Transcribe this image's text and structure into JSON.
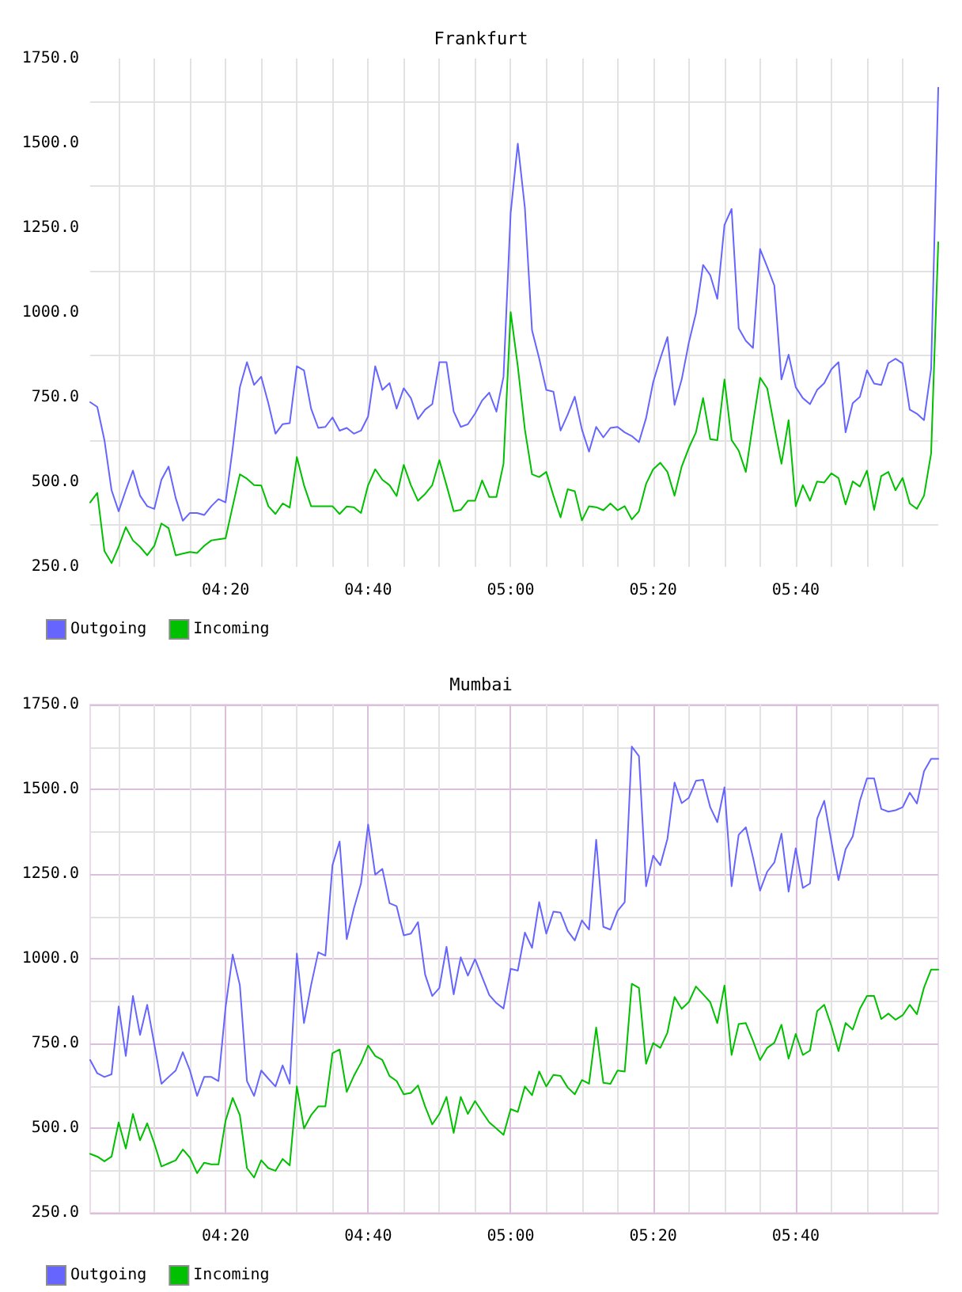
{
  "chart_data": [
    {
      "type": "line",
      "title": "Frankfurt",
      "x": [
        4.0167,
        4.0333,
        4.05,
        4.0667,
        4.0833,
        4.1,
        4.1167,
        4.1333,
        4.15,
        4.1667,
        4.1833,
        4.2,
        4.2167,
        4.2333,
        4.25,
        4.2667,
        4.2833,
        4.3,
        4.3167,
        4.3333,
        4.35,
        4.3667,
        4.3833,
        4.4,
        4.4167,
        4.4333,
        4.45,
        4.4667,
        4.4833,
        4.5,
        4.5167,
        4.5333,
        4.55,
        4.5667,
        4.5833,
        4.6,
        4.6167,
        4.6333,
        4.65,
        4.6667,
        4.6833,
        4.7,
        4.7167,
        4.7333,
        4.75,
        4.7667,
        4.7833,
        4.8,
        4.8167,
        4.8333,
        4.85,
        4.8667,
        4.8833,
        4.9,
        4.9167,
        4.9333,
        4.95,
        4.9667,
        4.9833,
        5,
        5.0167,
        5.0333,
        5.05,
        5.0667,
        5.0833,
        5.1,
        5.1167,
        5.1333,
        5.15,
        5.1667,
        5.1833,
        5.2,
        5.2167,
        5.2333,
        5.25,
        5.2667,
        5.2833,
        5.3,
        5.3167,
        5.3333,
        5.35,
        5.3667,
        5.3833,
        5.4,
        5.4167,
        5.4333,
        5.45,
        5.4667,
        5.4833,
        5.5,
        5.5167,
        5.5333,
        5.55,
        5.5667,
        5.5833,
        5.6,
        5.6167,
        5.6333,
        5.65,
        5.6667,
        5.6833,
        5.7,
        5.7167,
        5.7333,
        5.75,
        5.7667,
        5.7833,
        5.8,
        5.8167,
        5.8333,
        5.85,
        5.8667,
        5.8833,
        5.9,
        5.9167,
        5.9333,
        5.95,
        5.9667,
        5.9833,
        6
      ],
      "series": [
        {
          "name": "Outgoing",
          "color": "#6666ff",
          "values": [
            736,
            722,
            624,
            476,
            414,
            476,
            534,
            460,
            429,
            421,
            507,
            546,
            453,
            386,
            409,
            409,
            403,
            429,
            450,
            440,
            600,
            780,
            854,
            787,
            811,
            733,
            643,
            671,
            674,
            842,
            830,
            717,
            660,
            663,
            691,
            652,
            660,
            643,
            652,
            694,
            842,
            772,
            792,
            717,
            777,
            748,
            686,
            714,
            730,
            854,
            854,
            709,
            663,
            671,
            702,
            741,
            764,
            708,
            811,
            1294,
            1499,
            1309,
            948,
            865,
            772,
            767,
            652,
            699,
            752,
            655,
            590,
            663,
            632,
            660,
            663,
            647,
            636,
            618,
            689,
            795,
            865,
            928,
            728,
            803,
            912,
            998,
            1141,
            1111,
            1041,
            1259,
            1306,
            954,
            917,
            896,
            1188,
            1135,
            1080,
            803,
            876,
            780,
            748,
            730,
            772,
            792,
            833,
            854,
            647,
            733,
            752,
            830,
            791,
            787,
            851,
            864,
            850,
            714,
            702,
            683,
            834,
            1664
          ]
        },
        {
          "name": "Incoming",
          "color": "#00c000",
          "values": [
            440,
            468,
            297,
            261,
            309,
            367,
            328,
            309,
            284,
            312,
            378,
            364,
            284,
            289,
            294,
            291,
            312,
            328,
            331,
            334,
            429,
            523,
            510,
            491,
            490,
            429,
            406,
            437,
            425,
            574,
            491,
            429,
            429,
            429,
            429,
            406,
            428,
            426,
            409,
            491,
            538,
            507,
            491,
            459,
            551,
            491,
            445,
            465,
            491,
            565,
            491,
            414,
            418,
            445,
            445,
            505,
            456,
            456,
            554,
            1002,
            842,
            655,
            523,
            515,
            530,
            460,
            396,
            479,
            473,
            387,
            429,
            426,
            417,
            437,
            417,
            429,
            390,
            414,
            495,
            538,
            557,
            530,
            460,
            546,
            601,
            647,
            748,
            627,
            624,
            803,
            624,
            593,
            530,
            674,
            808,
            777,
            663,
            554,
            683,
            429,
            491,
            445,
            502,
            499,
            526,
            512,
            434,
            502,
            487,
            534,
            418,
            518,
            530,
            476,
            512,
            437,
            421,
            460,
            585,
            1208
          ]
        }
      ],
      "xlim": [
        4.0167,
        6
      ],
      "xticks": [
        {
          "value": 4.0833,
          "label": null
        },
        {
          "value": 4.1667,
          "label": null
        },
        {
          "value": 4.25,
          "label": null
        },
        {
          "value": 4.3333,
          "label": "04:20"
        },
        {
          "value": 4.4167,
          "label": null
        },
        {
          "value": 4.5,
          "label": null
        },
        {
          "value": 4.5833,
          "label": null
        },
        {
          "value": 4.6667,
          "label": "04:40"
        },
        {
          "value": 4.75,
          "label": null
        },
        {
          "value": 4.8333,
          "label": null
        },
        {
          "value": 4.9167,
          "label": null
        },
        {
          "value": 5,
          "label": "05:00"
        },
        {
          "value": 5.0833,
          "label": null
        },
        {
          "value": 5.1667,
          "label": null
        },
        {
          "value": 5.25,
          "label": null
        },
        {
          "value": 5.3333,
          "label": "05:20"
        },
        {
          "value": 5.4167,
          "label": null
        },
        {
          "value": 5.5,
          "label": null
        },
        {
          "value": 5.5833,
          "label": null
        },
        {
          "value": 5.6667,
          "label": "05:40"
        },
        {
          "value": 5.75,
          "label": null
        },
        {
          "value": 5.8333,
          "label": null
        },
        {
          "value": 5.9167,
          "label": null
        }
      ],
      "ylim": [
        250,
        1750
      ],
      "yticks": [
        {
          "value": 250,
          "label": "250.0"
        },
        {
          "value": 375,
          "label": null
        },
        {
          "value": 500,
          "label": "500.0"
        },
        {
          "value": 625,
          "label": null
        },
        {
          "value": 750,
          "label": "750.0"
        },
        {
          "value": 875,
          "label": null
        },
        {
          "value": 1000,
          "label": "1000.0"
        },
        {
          "value": 1125,
          "label": null
        },
        {
          "value": 1250,
          "label": "1250.0"
        },
        {
          "value": 1375,
          "label": null
        },
        {
          "value": 1500,
          "label": "1500.0"
        },
        {
          "value": 1625,
          "label": null
        },
        {
          "value": 1750,
          "label": "1750.0"
        }
      ],
      "grid": true,
      "legend": "bottom left",
      "marker": "none",
      "line_style": "solid"
    },
    {
      "type": "line",
      "title": "Mumbai",
      "x": [
        4.0167,
        4.0333,
        4.05,
        4.0667,
        4.0833,
        4.1,
        4.1167,
        4.1333,
        4.15,
        4.1667,
        4.1833,
        4.2,
        4.2167,
        4.2333,
        4.25,
        4.2667,
        4.2833,
        4.3,
        4.3167,
        4.3333,
        4.35,
        4.3667,
        4.3833,
        4.4,
        4.4167,
        4.4333,
        4.45,
        4.4667,
        4.4833,
        4.5,
        4.5167,
        4.5333,
        4.55,
        4.5667,
        4.5833,
        4.6,
        4.6167,
        4.6333,
        4.65,
        4.6667,
        4.6833,
        4.7,
        4.7167,
        4.7333,
        4.75,
        4.7667,
        4.7833,
        4.8,
        4.8167,
        4.8333,
        4.85,
        4.8667,
        4.8833,
        4.9,
        4.9167,
        4.9333,
        4.95,
        4.9667,
        4.9833,
        5,
        5.0167,
        5.0333,
        5.05,
        5.0667,
        5.0833,
        5.1,
        5.1167,
        5.1333,
        5.15,
        5.1667,
        5.1833,
        5.2,
        5.2167,
        5.2333,
        5.25,
        5.2667,
        5.2833,
        5.3,
        5.3167,
        5.3333,
        5.35,
        5.3667,
        5.3833,
        5.4,
        5.4167,
        5.4333,
        5.45,
        5.4667,
        5.4833,
        5.5,
        5.5167,
        5.5333,
        5.55,
        5.5667,
        5.5833,
        5.6,
        5.6167,
        5.6333,
        5.65,
        5.6667,
        5.6833,
        5.7,
        5.7167,
        5.7333,
        5.75,
        5.7667,
        5.7833,
        5.8,
        5.8167,
        5.8333,
        5.85,
        5.8667,
        5.8833,
        5.9,
        5.9167,
        5.9333,
        5.95,
        5.9667,
        5.9833,
        6
      ],
      "series": [
        {
          "name": "Outgoing",
          "color": "#6666ff",
          "values": [
            701,
            662,
            651,
            659,
            859,
            713,
            890,
            775,
            864,
            747,
            631,
            651,
            670,
            724,
            670,
            595,
            651,
            651,
            639,
            856,
            1012,
            922,
            639,
            595,
            670,
            646,
            623,
            685,
            631,
            1015,
            810,
            922,
            1019,
            1009,
            1276,
            1346,
            1058,
            1148,
            1222,
            1396,
            1248,
            1265,
            1164,
            1155,
            1069,
            1074,
            1108,
            953,
            890,
            914,
            1035,
            895,
            1004,
            950,
            999,
            946,
            893,
            869,
            853,
            970,
            965,
            1077,
            1032,
            1167,
            1074,
            1139,
            1136,
            1082,
            1054,
            1113,
            1086,
            1351,
            1094,
            1086,
            1141,
            1167,
            1626,
            1598,
            1214,
            1304,
            1276,
            1354,
            1520,
            1459,
            1475,
            1525,
            1528,
            1447,
            1403,
            1506,
            1214,
            1366,
            1388,
            1299,
            1201,
            1257,
            1284,
            1369,
            1198,
            1326,
            1209,
            1222,
            1413,
            1466,
            1346,
            1232,
            1323,
            1361,
            1466,
            1532,
            1532,
            1442,
            1434,
            1438,
            1447,
            1490,
            1458,
            1553,
            1590,
            1590
          ]
        },
        {
          "name": "Incoming",
          "color": "#00c000",
          "values": [
            424,
            416,
            402,
            416,
            517,
            440,
            542,
            464,
            514,
            455,
            387,
            396,
            405,
            437,
            413,
            367,
            398,
            393,
            393,
            522,
            589,
            538,
            382,
            354,
            405,
            382,
            374,
            409,
            390,
            623,
            499,
            538,
            564,
            564,
            721,
            732,
            607,
            654,
            693,
            744,
            713,
            701,
            654,
            639,
            600,
            604,
            626,
            564,
            511,
            542,
            592,
            486,
            592,
            542,
            580,
            548,
            517,
            499,
            480,
            556,
            548,
            623,
            597,
            667,
            623,
            657,
            654,
            620,
            600,
            642,
            631,
            797,
            634,
            631,
            670,
            667,
            926,
            914,
            690,
            751,
            737,
            782,
            887,
            852,
            872,
            918,
            895,
            872,
            810,
            921,
            716,
            807,
            810,
            758,
            701,
            737,
            752,
            805,
            705,
            778,
            716,
            729,
            845,
            864,
            802,
            727,
            810,
            791,
            852,
            890,
            890,
            822,
            838,
            820,
            833,
            864,
            836,
            915,
            968,
            968
          ]
        }
      ],
      "xlim": [
        4.0167,
        6
      ],
      "xticks": [
        {
          "value": 4.0833,
          "label": null
        },
        {
          "value": 4.1667,
          "label": null
        },
        {
          "value": 4.25,
          "label": null
        },
        {
          "value": 4.3333,
          "label": "04:20"
        },
        {
          "value": 4.4167,
          "label": null
        },
        {
          "value": 4.5,
          "label": null
        },
        {
          "value": 4.5833,
          "label": null
        },
        {
          "value": 4.6667,
          "label": "04:40"
        },
        {
          "value": 4.75,
          "label": null
        },
        {
          "value": 4.8333,
          "label": null
        },
        {
          "value": 4.9167,
          "label": null
        },
        {
          "value": 5,
          "label": "05:00"
        },
        {
          "value": 5.0833,
          "label": null
        },
        {
          "value": 5.1667,
          "label": null
        },
        {
          "value": 5.25,
          "label": null
        },
        {
          "value": 5.3333,
          "label": "05:20"
        },
        {
          "value": 5.4167,
          "label": null
        },
        {
          "value": 5.5,
          "label": null
        },
        {
          "value": 5.5833,
          "label": null
        },
        {
          "value": 5.6667,
          "label": "05:40"
        },
        {
          "value": 5.75,
          "label": null
        },
        {
          "value": 5.8333,
          "label": null
        },
        {
          "value": 5.9167,
          "label": null
        }
      ],
      "ylim": [
        250,
        1750
      ],
      "yticks": [
        {
          "value": 250,
          "label": "250.0"
        },
        {
          "value": 375,
          "label": null
        },
        {
          "value": 500,
          "label": "500.0"
        },
        {
          "value": 625,
          "label": null
        },
        {
          "value": 750,
          "label": "750.0"
        },
        {
          "value": 875,
          "label": null
        },
        {
          "value": 1000,
          "label": "1000.0"
        },
        {
          "value": 1125,
          "label": null
        },
        {
          "value": 1250,
          "label": "1250.0"
        },
        {
          "value": 1375,
          "label": null
        },
        {
          "value": 1500,
          "label": "1500.0"
        },
        {
          "value": 1625,
          "label": null
        },
        {
          "value": 1750,
          "label": "1750.0"
        }
      ],
      "grid": true,
      "legend": "bottom left",
      "marker": "none",
      "line_style": "solid"
    }
  ]
}
